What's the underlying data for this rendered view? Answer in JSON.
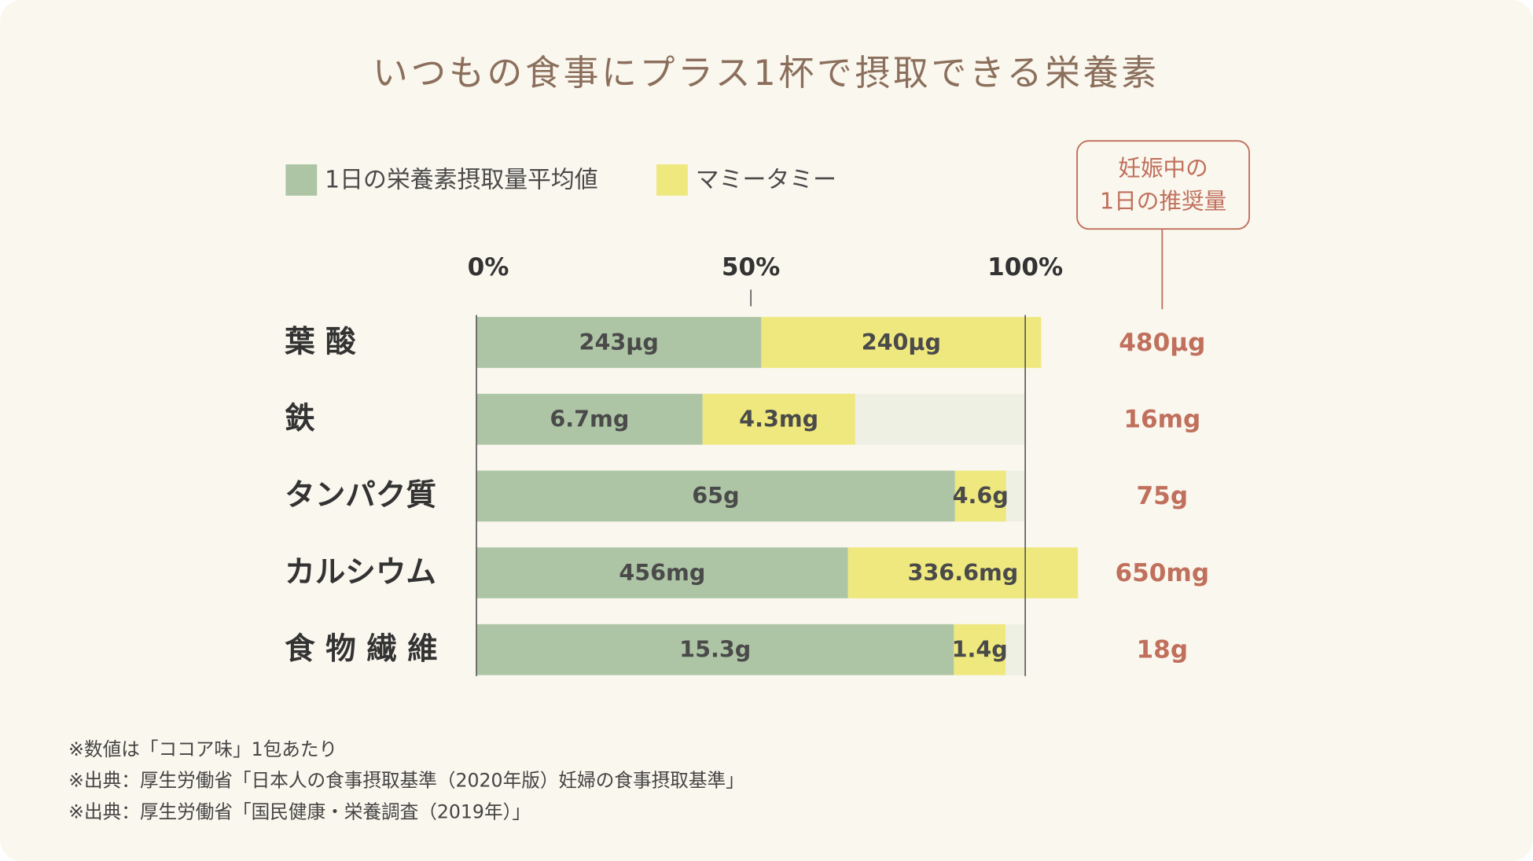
{
  "chart_data": {
    "type": "stacked_barh",
    "title": "いつもの食事にプラス1杯で摂取できる栄養素",
    "categories": [
      "葉 酸",
      "鉄",
      "タンパク質",
      "カルシウム",
      "食 物 繊 維"
    ],
    "series": [
      {
        "name": "1日の栄養素摂取量平均値",
        "color": "#adc5a5",
        "values": [
          51.9,
          41.2,
          87.2,
          67.7,
          87.0
        ],
        "value_labels": [
          "243μg",
          "6.7mg",
          "65g",
          "456mg",
          "15.3g"
        ]
      },
      {
        "name": "マミータミー",
        "color": "#efe87e",
        "values": [
          51.0,
          27.8,
          9.3,
          41.9,
          9.4
        ],
        "value_labels": [
          "240μg",
          "4.3mg",
          "4.6g",
          "336.6mg",
          "1.4g"
        ]
      }
    ],
    "xlim": [
      0,
      100
    ],
    "xticks": [
      {
        "value": 0,
        "label": "0%"
      },
      {
        "value": 50,
        "label": "50%"
      },
      {
        "value": 100,
        "label": "100%"
      }
    ],
    "recommended_title": [
      "妊娠中の",
      "1日の推奨量"
    ],
    "recommended": [
      "480μg",
      "16mg",
      "75g",
      "650mg",
      "18g"
    ],
    "notes": [
      "※数値は「ココア味」1包あたり",
      "※出典：厚生労働省「日本人の食事摂取基準（2020年版）妊婦の食事摂取基準」",
      "※出典：厚生労働省「国民健康・栄養調査（2019年）」"
    ]
  }
}
